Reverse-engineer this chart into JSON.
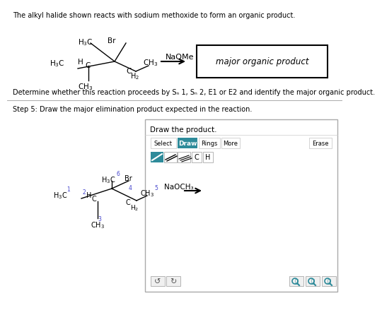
{
  "bg_color": "#ffffff",
  "white": "#ffffff",
  "black": "#000000",
  "gray_line": "#bbbbbb",
  "gray_light": "#e0e0e0",
  "teal_btn": "#2e8b9a",
  "teal_dark": "#1e6e7a",
  "blue_label": "#4444cc",
  "title_text": "The alkyl halide shown reacts with sodium methoxide to form an organic product.",
  "determine_text": "Determine whether this reaction proceeds by Sₙ 1, Sₙ 2, E1 or E2 and identify the major organic product.",
  "step_text": "Step 5: Draw the major elimination product expected in the reaction.",
  "draw_text": "Draw the product.",
  "select_text": "Select",
  "draw_btn": "Draw",
  "rings_text": "Rings",
  "more_text": "More",
  "erase_text": "Erase",
  "naome": "NaOMe",
  "naoch3": "NaOCH₃",
  "major_product_text": "major organic product"
}
